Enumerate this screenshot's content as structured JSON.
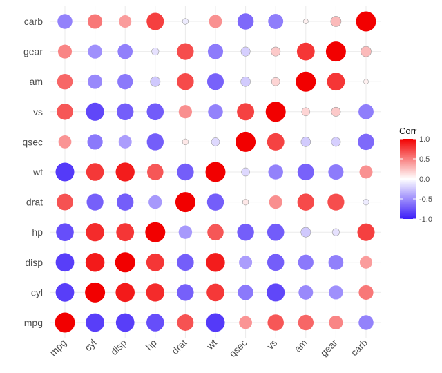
{
  "chart_data": {
    "type": "heatmap",
    "marker": "circle",
    "variables": [
      "mpg",
      "cyl",
      "disp",
      "hp",
      "drat",
      "wt",
      "qsec",
      "vs",
      "am",
      "gear",
      "carb"
    ],
    "matrix": [
      [
        1.0,
        -0.85,
        -0.85,
        -0.78,
        0.68,
        -0.87,
        0.42,
        0.66,
        0.6,
        0.48,
        -0.55
      ],
      [
        -0.85,
        1.0,
        0.9,
        0.83,
        -0.7,
        0.78,
        -0.59,
        -0.81,
        -0.52,
        -0.49,
        0.53
      ],
      [
        -0.85,
        0.9,
        1.0,
        0.79,
        -0.71,
        0.89,
        -0.43,
        -0.71,
        -0.59,
        -0.56,
        0.39
      ],
      [
        -0.78,
        0.83,
        0.79,
        1.0,
        -0.45,
        0.66,
        -0.71,
        -0.72,
        -0.24,
        -0.13,
        0.75
      ],
      [
        0.68,
        -0.7,
        -0.71,
        -0.45,
        1.0,
        -0.71,
        0.09,
        0.44,
        0.71,
        0.7,
        -0.09
      ],
      [
        -0.87,
        0.78,
        0.89,
        0.66,
        -0.71,
        1.0,
        -0.17,
        -0.55,
        -0.69,
        -0.58,
        0.43
      ],
      [
        0.42,
        -0.59,
        -0.43,
        -0.71,
        0.09,
        -0.17,
        1.0,
        0.74,
        -0.23,
        -0.21,
        -0.66
      ],
      [
        0.66,
        -0.81,
        -0.71,
        -0.72,
        0.44,
        -0.55,
        0.74,
        1.0,
        0.17,
        0.21,
        -0.57
      ],
      [
        0.6,
        -0.52,
        -0.59,
        -0.24,
        0.71,
        -0.69,
        -0.23,
        0.17,
        1.0,
        0.79,
        0.06
      ],
      [
        0.48,
        -0.49,
        -0.56,
        -0.13,
        0.7,
        -0.58,
        -0.21,
        0.21,
        0.79,
        1.0,
        0.27
      ],
      [
        -0.55,
        0.53,
        0.39,
        0.75,
        -0.09,
        0.43,
        -0.66,
        -0.57,
        0.06,
        0.27,
        1.0
      ]
    ],
    "legend": {
      "title": "Corr",
      "ticks": [
        "1.0",
        "0.5",
        "0.0",
        "-0.5",
        "-1.0"
      ],
      "tick_values": [
        1.0,
        0.5,
        0.0,
        -0.5,
        -1.0
      ],
      "placement": "right"
    },
    "colors": {
      "low": "#3B1CF8",
      "mid": "#FFFFFF",
      "high": "#F20000"
    },
    "grid": true
  }
}
